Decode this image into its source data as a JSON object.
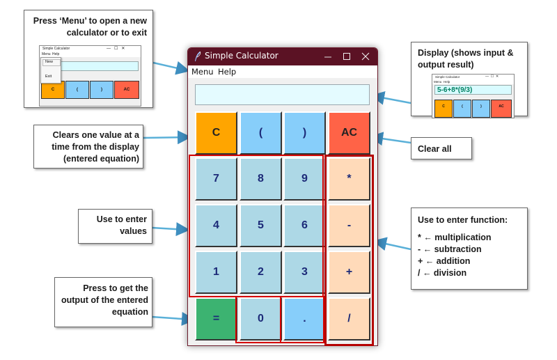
{
  "window": {
    "title": "Simple Calculator",
    "menu": [
      "Menu",
      "Help"
    ],
    "display_value": ""
  },
  "keys": {
    "row1": [
      "C",
      "(",
      ")",
      "AC"
    ],
    "row2": [
      "7",
      "8",
      "9",
      "*"
    ],
    "row3": [
      "4",
      "5",
      "6",
      "-"
    ],
    "row4": [
      "1",
      "2",
      "3",
      "+"
    ],
    "row5": [
      "=",
      "0",
      ".",
      "/"
    ]
  },
  "callouts": {
    "menu": {
      "text": "Press ‘Menu’ to open a new calculator or to exit",
      "thumb_title": "Simple Calculator",
      "thumb_menu": [
        "Menu",
        "Help"
      ],
      "thumb_dropdown": [
        "New",
        "Exit"
      ],
      "thumb_keys": [
        "C",
        "(",
        ")",
        "AC"
      ]
    },
    "display": {
      "text": "Display (shows input & output result)",
      "thumb_title": "Simple Calculator",
      "thumb_menu": [
        "Menu",
        "Help"
      ],
      "thumb_value": "5-6+8*(9/3)",
      "thumb_keys": [
        "C",
        "(",
        ")",
        "AC"
      ]
    },
    "clear": "Clears one value at a time from the display (entered equation)",
    "clear_all": "Clear all",
    "values": "Use to enter values",
    "equals": "Press to get the output of the entered equation",
    "functions": {
      "heading": "Use to enter function:",
      "items": [
        "* ← multiplication",
        "- ← subtraction",
        "+ ← addition",
        "/ ← division"
      ]
    }
  },
  "colors": {
    "titlebar": "#5b1224",
    "display": "#e4fbff",
    "key_clear": "#ffa500",
    "key_paren": "#87cefa",
    "key_ac": "#ff6347",
    "key_number": "#add8e6",
    "key_operator": "#ffdab9",
    "key_equals": "#3cb371",
    "highlight": "#d40000",
    "arrow": "#5ab0d8"
  }
}
